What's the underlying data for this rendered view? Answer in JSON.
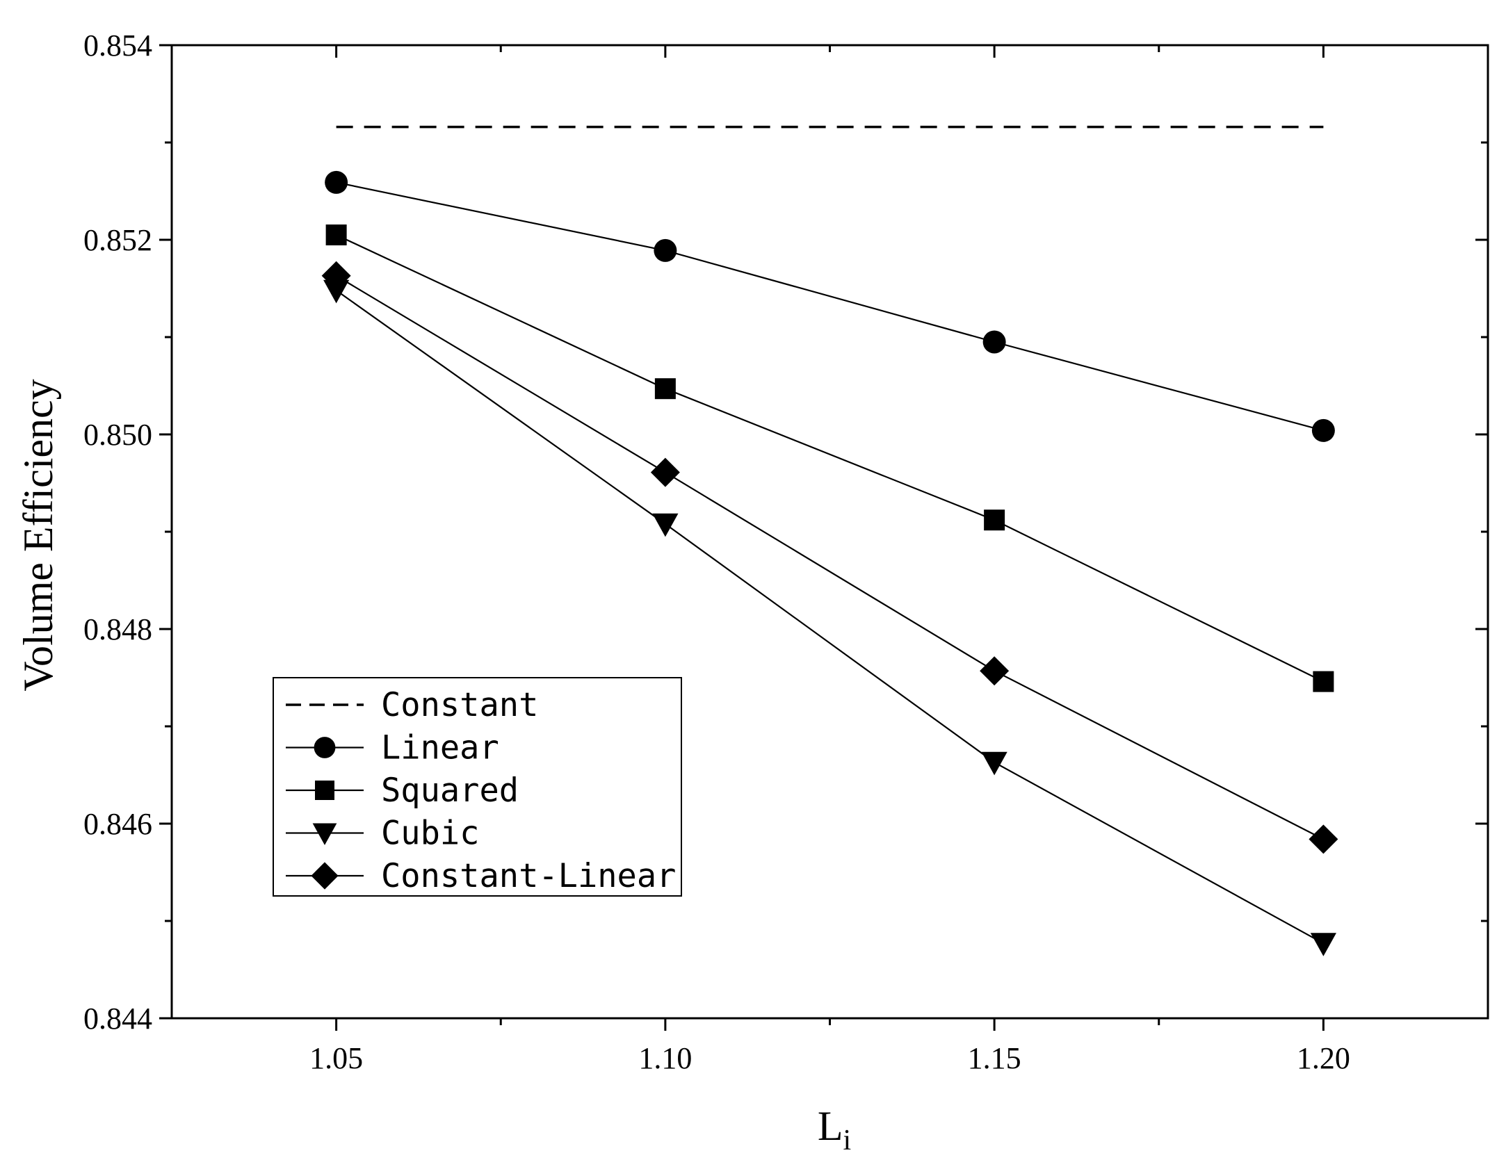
{
  "chart_data": {
    "type": "line",
    "title": "",
    "xlabel": "L",
    "xlabel_subscript": "i",
    "ylabel": "Volume Efficiency",
    "xlim": [
      1.025,
      1.225
    ],
    "ylim": [
      0.844,
      0.854
    ],
    "x": [
      1.05,
      1.1,
      1.15,
      1.2
    ],
    "x_tick_labels": [
      "1.05",
      "1.10",
      "1.15",
      "1.20"
    ],
    "y_tick_values": [
      0.844,
      0.846,
      0.848,
      0.85,
      0.852,
      0.854
    ],
    "y_tick_labels": [
      "0.844",
      "0.846",
      "0.848",
      "0.850",
      "0.852",
      "0.854"
    ],
    "grid": false,
    "legend_position": "bottom-left",
    "series": [
      {
        "name": "Constant",
        "marker": "none",
        "line_style": "dashed",
        "values": [
          0.85316,
          0.85316,
          0.85316,
          0.85316
        ]
      },
      {
        "name": "Linear",
        "marker": "circle",
        "line_style": "solid",
        "values": [
          0.85259,
          0.85189,
          0.85095,
          0.85004
        ]
      },
      {
        "name": "Squared",
        "marker": "square",
        "line_style": "solid",
        "values": [
          0.85205,
          0.85047,
          0.84912,
          0.84746
        ]
      },
      {
        "name": "Cubic",
        "marker": "triangle-down",
        "line_style": "solid",
        "values": [
          0.85148,
          0.84908,
          0.84663,
          0.84477
        ]
      },
      {
        "name": "Constant-Linear",
        "marker": "diamond",
        "line_style": "solid",
        "values": [
          0.85163,
          0.84961,
          0.84757,
          0.84584
        ]
      }
    ]
  }
}
